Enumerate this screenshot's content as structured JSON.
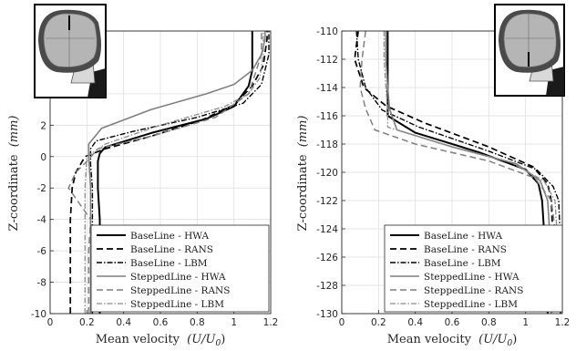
{
  "chart_data": [
    {
      "type": "line",
      "xlabel_text": "Mean velocity",
      "xlabel_math": "(U/U",
      "xlabel_sub": "0",
      "xlabel_close": ")",
      "ylabel_text": "Z-coordinate",
      "ylabel_math": "(mm)",
      "xlim": [
        0,
        1.2
      ],
      "ylim": [
        -10,
        8
      ],
      "xticks": [
        "0",
        "0.2",
        "0.4",
        "0.6",
        "0.8",
        "1",
        "1.2"
      ],
      "xtick_values": [
        0,
        0.2,
        0.4,
        0.6,
        0.8,
        1.0,
        1.2
      ],
      "yticks": [
        "-10",
        "-8",
        "-6",
        "-4",
        "-2",
        "0",
        "2",
        "4"
      ],
      "ytick_values": [
        -10,
        -8,
        -6,
        -4,
        -2,
        0,
        2,
        4
      ],
      "grid": true,
      "legend_position": "lower-right",
      "inset_position": "top-left",
      "series": [
        {
          "name": "BaseLine - HWA",
          "color": "#000000",
          "dash": "solid",
          "width": 2.0,
          "x": [
            0.27,
            0.27,
            0.27,
            0.27,
            0.26,
            0.26,
            0.27,
            0.3,
            0.55,
            0.85,
            1.0,
            1.08,
            1.1,
            1.1,
            1.1,
            1.1
          ],
          "y": [
            -10,
            -8,
            -6,
            -4,
            -2,
            -0.3,
            0.2,
            0.6,
            1.5,
            2.4,
            3.2,
            4.5,
            5.5,
            6.5,
            7.5,
            8
          ]
        },
        {
          "name": "BaseLine - RANS",
          "color": "#000000",
          "dash": "7,4",
          "width": 1.7,
          "x": [
            0.11,
            0.11,
            0.11,
            0.11,
            0.12,
            0.14,
            0.19,
            0.3,
            0.55,
            0.82,
            1.0,
            1.1,
            1.16,
            1.18,
            1.18
          ],
          "y": [
            -10,
            -8,
            -6,
            -4,
            -2,
            -1,
            0,
            0.5,
            1.3,
            2.3,
            3.3,
            4.5,
            5.8,
            7.5,
            8
          ]
        },
        {
          "name": "BaseLine - LBM",
          "color": "#000000",
          "dash": "6,2,1.5,2",
          "width": 1.4,
          "x": [
            0.23,
            0.23,
            0.23,
            0.23,
            0.23,
            0.22,
            0.22,
            0.25,
            0.45,
            0.8,
            1.05,
            1.15,
            1.19,
            1.19
          ],
          "y": [
            -10,
            -8,
            -6,
            -4,
            -2,
            -0.5,
            0.5,
            1.0,
            1.6,
            2.5,
            3.4,
            4.6,
            6.5,
            8
          ]
        },
        {
          "name": "SteppedLine - HWA",
          "color": "#7f7f7f",
          "dash": "solid",
          "width": 1.6,
          "x": [
            0.22,
            0.22,
            0.22,
            0.22,
            0.22,
            0.21,
            0.21,
            0.28,
            0.55,
            0.85,
            1.0,
            1.1,
            1.15,
            1.17,
            1.17
          ],
          "y": [
            -10,
            -8,
            -6,
            -4,
            -2,
            0,
            0.8,
            1.8,
            3.0,
            4.0,
            4.6,
            5.5,
            6.5,
            7.5,
            8
          ]
        },
        {
          "name": "SteppedLine - RANS",
          "color": "#7f7f7f",
          "dash": "7,4",
          "width": 1.5,
          "x": [
            0.21,
            0.21,
            0.21,
            0.22,
            0.1,
            0.14,
            0.2,
            0.26,
            0.55,
            0.9,
            1.08,
            1.15,
            1.15
          ],
          "y": [
            -10,
            -8,
            -6,
            -4,
            -2,
            -1,
            -0.3,
            0.5,
            1.3,
            2.5,
            4.0,
            6.5,
            8
          ]
        },
        {
          "name": "SteppedLine - LBM",
          "color": "#8c8c8c",
          "dash": "6,2,1.5,2",
          "width": 1.3,
          "x": [
            0.19,
            0.19,
            0.19,
            0.19,
            0.19,
            0.2,
            0.3,
            0.6,
            0.95,
            1.08,
            1.14,
            1.16,
            1.16
          ],
          "y": [
            -10,
            -8,
            -6,
            -4,
            -2,
            0,
            0.8,
            2.0,
            3.2,
            4.0,
            5.0,
            6.5,
            8
          ]
        }
      ]
    },
    {
      "type": "line",
      "xlabel_text": "Mean velocity",
      "xlabel_math": "(U/U",
      "xlabel_sub": "0",
      "xlabel_close": ")",
      "xlim": [
        0,
        1.2
      ],
      "ylim": [
        -130,
        -110
      ],
      "xticks": [
        "0",
        "0.2",
        "0.4",
        "0.6",
        "0.8",
        "1",
        "1.2"
      ],
      "xtick_values": [
        0,
        0.2,
        0.4,
        0.6,
        0.8,
        1.0,
        1.2
      ],
      "yticks": [
        "-130",
        "-128",
        "-126",
        "-124",
        "-122",
        "-120",
        "-118",
        "-116",
        "-114",
        "-112",
        "-110"
      ],
      "ytick_values": [
        -130,
        -128,
        -126,
        -124,
        -122,
        -120,
        -118,
        -116,
        -114,
        -112,
        -110
      ],
      "grid": true,
      "legend_position": "lower-left",
      "inset_position": "top-right",
      "series": [
        {
          "name": "BaseLine - HWA",
          "color": "#000000",
          "dash": "solid",
          "width": 2.0,
          "x": [
            0.25,
            0.25,
            0.25,
            0.25,
            0.4,
            0.75,
            1.0,
            1.07,
            1.09,
            1.1,
            1.1,
            1.11,
            1.12,
            1.12
          ],
          "y": [
            -110,
            -112,
            -114,
            -116,
            -117.2,
            -118.6,
            -119.8,
            -120.8,
            -122,
            -124,
            -126,
            -128,
            -129,
            -130
          ]
        },
        {
          "name": "BaseLine - RANS",
          "color": "#000000",
          "dash": "7,4",
          "width": 1.7,
          "x": [
            0.09,
            0.07,
            0.12,
            0.24,
            0.45,
            0.8,
            1.04,
            1.12,
            1.14,
            1.15,
            1.15,
            1.15
          ],
          "y": [
            -110,
            -112,
            -114,
            -115.3,
            -116.5,
            -118.2,
            -119.6,
            -120.8,
            -122,
            -125,
            -128,
            -130
          ]
        },
        {
          "name": "BaseLine - LBM",
          "color": "#000000",
          "dash": "6,2,1.5,2",
          "width": 1.4,
          "x": [
            0.08,
            0.09,
            0.13,
            0.22,
            0.42,
            0.8,
            1.06,
            1.15,
            1.18,
            1.19,
            1.19,
            1.19
          ],
          "y": [
            -110,
            -112,
            -114,
            -115.6,
            -116.8,
            -118.5,
            -119.8,
            -121,
            -122,
            -125,
            -128,
            -130
          ]
        },
        {
          "name": "SteppedLine - HWA",
          "color": "#7f7f7f",
          "dash": "solid",
          "width": 1.6,
          "x": [
            0.24,
            0.24,
            0.25,
            0.26,
            0.3,
            0.6,
            0.95,
            1.08,
            1.12,
            1.13,
            1.14,
            1.14,
            1.14
          ],
          "y": [
            -110,
            -112,
            -114,
            -115.5,
            -117,
            -118.2,
            -119.4,
            -120.6,
            -122,
            -124,
            -126,
            -128,
            -130
          ]
        },
        {
          "name": "SteppedLine - RANS",
          "color": "#7f7f7f",
          "dash": "7,4",
          "width": 1.5,
          "x": [
            0.13,
            0.11,
            0.1,
            0.13,
            0.18,
            0.4,
            0.8,
            1.05,
            1.14,
            1.16,
            1.17,
            1.17
          ],
          "y": [
            -110,
            -112,
            -114,
            -115.5,
            -117,
            -118,
            -119.2,
            -120.4,
            -122,
            -124,
            -127,
            -130
          ]
        },
        {
          "name": "SteppedLine - LBM",
          "color": "#8c8c8c",
          "dash": "6,2,1.5,2",
          "width": 1.3,
          "x": [
            0.23,
            0.23,
            0.24,
            0.25,
            0.25,
            0.55,
            0.92,
            1.1,
            1.16,
            1.17,
            1.17,
            1.17
          ],
          "y": [
            -110,
            -112,
            -114,
            -115.5,
            -116.8,
            -118,
            -119.3,
            -120.6,
            -122,
            -124,
            -127,
            -130
          ]
        }
      ]
    }
  ]
}
